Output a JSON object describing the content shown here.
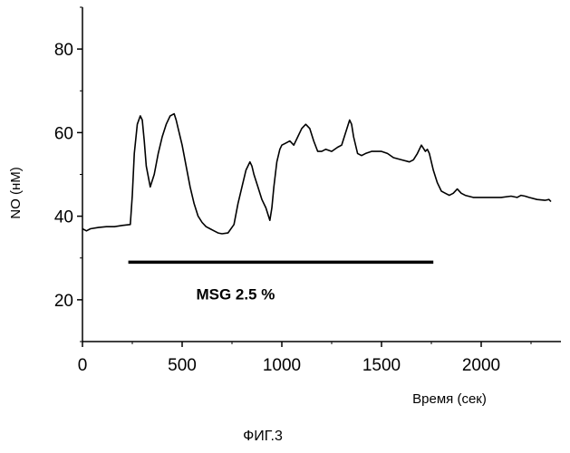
{
  "chart_data": {
    "type": "line",
    "title": "",
    "xlabel": "Время (сек)",
    "ylabel": "NO (нМ)",
    "caption": "ФИГ.3",
    "xlim": [
      0,
      2400
    ],
    "ylim": [
      10,
      90
    ],
    "x_ticks": [
      0,
      500,
      1000,
      1500,
      2000
    ],
    "y_ticks": [
      20,
      40,
      60,
      80
    ],
    "grid": false,
    "series": [
      {
        "x": [
          0,
          20,
          40,
          80,
          120,
          160,
          200,
          240,
          250,
          260,
          275,
          290,
          300,
          310,
          320,
          340,
          360,
          380,
          400,
          420,
          440,
          460,
          470,
          480,
          500,
          520,
          540,
          560,
          580,
          600,
          620,
          640,
          660,
          680,
          700,
          730,
          760,
          780,
          800,
          820,
          840,
          850,
          860,
          880,
          900,
          920,
          940,
          950,
          960,
          975,
          990,
          1000,
          1020,
          1040,
          1060,
          1080,
          1100,
          1120,
          1140,
          1160,
          1180,
          1200,
          1220,
          1250,
          1280,
          1300,
          1320,
          1340,
          1350,
          1360,
          1380,
          1400,
          1420,
          1450,
          1480,
          1500,
          1530,
          1560,
          1600,
          1640,
          1660,
          1680,
          1700,
          1720,
          1730,
          1740,
          1760,
          1780,
          1800,
          1820,
          1840,
          1860,
          1880,
          1900,
          1920,
          1960,
          2000,
          2050,
          2100,
          2150,
          2180,
          2200,
          2220,
          2240,
          2280,
          2320,
          2340,
          2350
        ],
        "values": [
          37,
          36.5,
          37,
          37.3,
          37.5,
          37.5,
          37.8,
          38,
          45,
          55,
          62,
          64,
          63,
          58,
          52,
          47,
          50,
          55,
          59,
          62,
          64,
          64.5,
          63,
          61,
          57,
          52,
          47,
          43,
          40,
          38.5,
          37.5,
          37,
          36.5,
          36,
          35.8,
          36,
          38,
          43,
          47,
          51,
          53,
          52,
          50,
          47,
          44,
          42,
          39,
          42,
          47,
          53,
          56,
          57,
          57.5,
          58,
          57,
          59,
          61,
          62,
          61,
          58,
          55.5,
          55.5,
          56,
          55.5,
          56.5,
          57,
          60,
          63,
          62,
          59,
          55,
          54.5,
          55,
          55.5,
          55.5,
          55.5,
          55,
          54,
          53.5,
          53,
          53.5,
          55,
          57,
          55.5,
          56,
          55,
          51,
          48,
          46,
          45.5,
          45,
          45.5,
          46.5,
          45.5,
          45,
          44.5,
          44.5,
          44.5,
          44.5,
          44.8,
          44.5,
          45,
          44.8,
          44.5,
          44,
          43.8,
          44,
          43.5
        ]
      }
    ],
    "annotations": [
      {
        "text": "MSG 2.5 %",
        "type": "bar",
        "x_start": 230,
        "x_end": 1760,
        "y": 29
      }
    ]
  }
}
